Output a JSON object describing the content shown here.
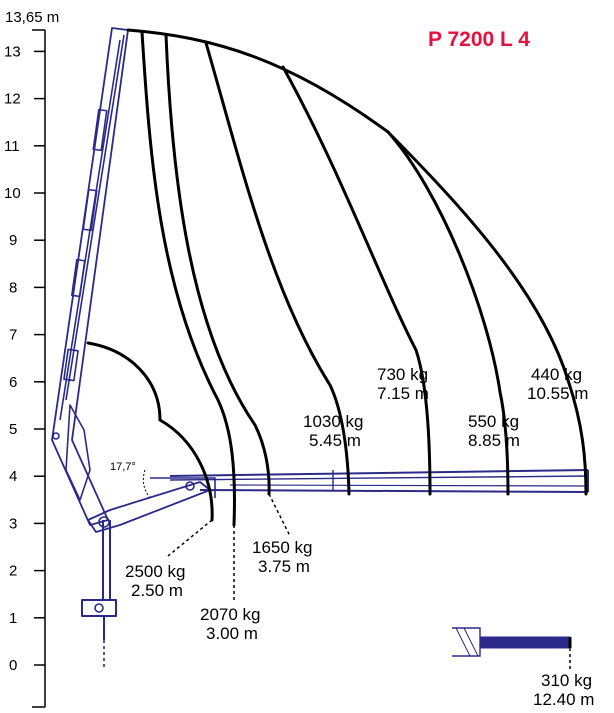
{
  "diagram": {
    "title": "P 7200 L 4",
    "title_color": "#e8103c",
    "line_color": "#000000",
    "crane_color": "#2b2a8a",
    "height_label": "13,65 m",
    "y_axis": {
      "min": 0,
      "max": 13,
      "ticks": [
        "0",
        "1",
        "2",
        "3",
        "4",
        "5",
        "6",
        "7",
        "8",
        "9",
        "10",
        "11",
        "12",
        "13"
      ]
    },
    "angle_label": "17,7°",
    "load_points": [
      {
        "load": "2500 kg",
        "reach": "2.50 m"
      },
      {
        "load": "2070 kg",
        "reach": "3.00 m"
      },
      {
        "load": "1650 kg",
        "reach": "3.75 m"
      },
      {
        "load": "1030 kg",
        "reach": "5.45 m"
      },
      {
        "load": "730 kg",
        "reach": "7.15 m"
      },
      {
        "load": "550 kg",
        "reach": "8.85 m"
      },
      {
        "load": "440 kg",
        "reach": "10.55 m"
      },
      {
        "load": "310 kg",
        "reach": "12.40 m"
      }
    ]
  }
}
